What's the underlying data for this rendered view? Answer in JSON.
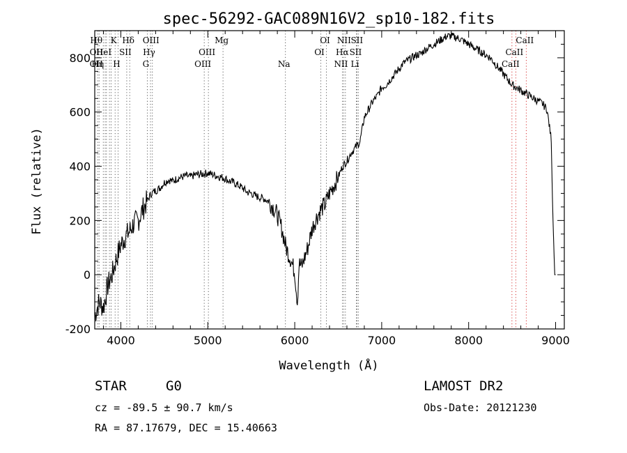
{
  "chart_data": {
    "type": "line",
    "title": "spec-56292-GAC089N16V2_sp10-182.fits",
    "xlabel": "Wavelength (Å)",
    "ylabel": "Flux (relative)",
    "xlim": [
      3700,
      9100
    ],
    "ylim": [
      -200,
      900
    ],
    "x_ticks": [
      4000,
      5000,
      6000,
      7000,
      8000,
      9000
    ],
    "y_ticks": [
      -200,
      0,
      200,
      400,
      600,
      800
    ],
    "grid": false,
    "series": [
      {
        "x": [
          3700,
          3750,
          3800,
          3850,
          3900,
          3950,
          4000,
          4050,
          4100,
          4150,
          4200,
          4250,
          4300,
          4350,
          4400,
          4450,
          4500,
          4550,
          4600,
          4650,
          4700,
          4750,
          4800,
          4850,
          4900,
          4950,
          5000,
          5050,
          5100,
          5150,
          5200,
          5250,
          5300,
          5350,
          5400,
          5450,
          5500,
          5550,
          5600,
          5650,
          5700,
          5750,
          5800,
          5850,
          5900,
          5950,
          6000,
          6030,
          6050,
          6080,
          6100,
          6150,
          6200,
          6250,
          6300,
          6350,
          6400,
          6450,
          6500,
          6550,
          6600,
          6650,
          6700,
          6750,
          6800,
          6850,
          6900,
          6950,
          7000,
          7050,
          7100,
          7150,
          7200,
          7250,
          7300,
          7350,
          7400,
          7450,
          7500,
          7550,
          7600,
          7650,
          7700,
          7750,
          7800,
          7850,
          7900,
          7950,
          8000,
          8050,
          8100,
          8150,
          8200,
          8250,
          8300,
          8350,
          8400,
          8450,
          8500,
          8550,
          8600,
          8650,
          8700,
          8750,
          8800,
          8850,
          8900,
          8950,
          8970,
          8990,
          9000
        ],
        "y": [
          -150,
          -100,
          -120,
          -40,
          0,
          60,
          110,
          140,
          160,
          190,
          200,
          240,
          270,
          300,
          310,
          320,
          340,
          350,
          345,
          355,
          360,
          365,
          360,
          368,
          370,
          372,
          375,
          370,
          365,
          360,
          355,
          345,
          340,
          330,
          320,
          305,
          300,
          290,
          285,
          280,
          270,
          250,
          220,
          170,
          100,
          60,
          10,
          -100,
          40,
          30,
          50,
          100,
          170,
          210,
          240,
          260,
          300,
          330,
          360,
          400,
          420,
          450,
          470,
          490,
          580,
          610,
          640,
          660,
          690,
          700,
          720,
          740,
          760,
          780,
          790,
          800,
          810,
          815,
          830,
          840,
          850,
          860,
          870,
          880,
          880,
          875,
          870,
          860,
          850,
          840,
          830,
          820,
          810,
          800,
          780,
          760,
          740,
          720,
          700,
          690,
          680,
          670,
          660,
          650,
          640,
          630,
          610,
          500,
          200,
          0,
          0
        ]
      }
    ],
    "line_markers": [
      {
        "x": 3734,
        "labels": [
          "Hθ",
          "OII",
          "OII"
        ]
      },
      {
        "x": 3750,
        "labels": [
          "",
          "",
          "Hη"
        ]
      },
      {
        "x": 3798,
        "labels": [
          "",
          "",
          ""
        ]
      },
      {
        "x": 3820,
        "labels": [
          "",
          "HeI",
          ""
        ]
      },
      {
        "x": 3835,
        "labels": [
          "",
          "",
          ""
        ]
      },
      {
        "x": 3869,
        "labels": [
          "",
          "",
          ""
        ]
      },
      {
        "x": 3889,
        "labels": [
          "",
          "",
          ""
        ]
      },
      {
        "x": 3934,
        "labels": [
          "K",
          "",
          ""
        ]
      },
      {
        "x": 3968,
        "labels": [
          "",
          "",
          "H"
        ]
      },
      {
        "x": 4068,
        "labels": [
          "",
          "SII",
          ""
        ]
      },
      {
        "x": 4102,
        "labels": [
          "Hδ",
          "",
          ""
        ]
      },
      {
        "x": 4304,
        "labels": [
          "",
          "",
          "G"
        ]
      },
      {
        "x": 4341,
        "labels": [
          "",
          "Hγ",
          ""
        ]
      },
      {
        "x": 4363,
        "labels": [
          "OIII",
          "",
          ""
        ]
      },
      {
        "x": 4959,
        "labels": [
          "",
          "",
          "OIII"
        ]
      },
      {
        "x": 5007,
        "labels": [
          "",
          "OIII",
          ""
        ]
      },
      {
        "x": 5175,
        "labels": [
          "Mg",
          "",
          ""
        ]
      },
      {
        "x": 5893,
        "labels": [
          "",
          "",
          "Na"
        ]
      },
      {
        "x": 6300,
        "labels": [
          "",
          "OI",
          ""
        ]
      },
      {
        "x": 6364,
        "labels": [
          "OI",
          "",
          ""
        ]
      },
      {
        "x": 6548,
        "labels": [
          "",
          "",
          "NII"
        ]
      },
      {
        "x": 6563,
        "labels": [
          "",
          "Hα",
          ""
        ]
      },
      {
        "x": 6583,
        "labels": [
          "NII",
          "",
          ""
        ]
      },
      {
        "x": 6708,
        "labels": [
          "",
          "",
          "Li"
        ]
      },
      {
        "x": 6716,
        "labels": [
          "",
          "SII",
          ""
        ]
      },
      {
        "x": 6731,
        "labels": [
          "SII",
          "",
          ""
        ]
      },
      {
        "x": 8498,
        "labels": [
          "",
          "",
          "CaII"
        ]
      },
      {
        "x": 8542,
        "labels": [
          "",
          "CaII",
          ""
        ]
      },
      {
        "x": 8662,
        "labels": [
          "CaII",
          "",
          ""
        ]
      }
    ]
  },
  "info": {
    "class": "STAR",
    "subclass": "G0",
    "survey": "LAMOST DR2",
    "cz": "cz = -89.5 ± 90.7 km/s",
    "obs_date": "Obs-Date: 20121230",
    "coords": "RA =  87.17679, DEC =  15.40663"
  }
}
